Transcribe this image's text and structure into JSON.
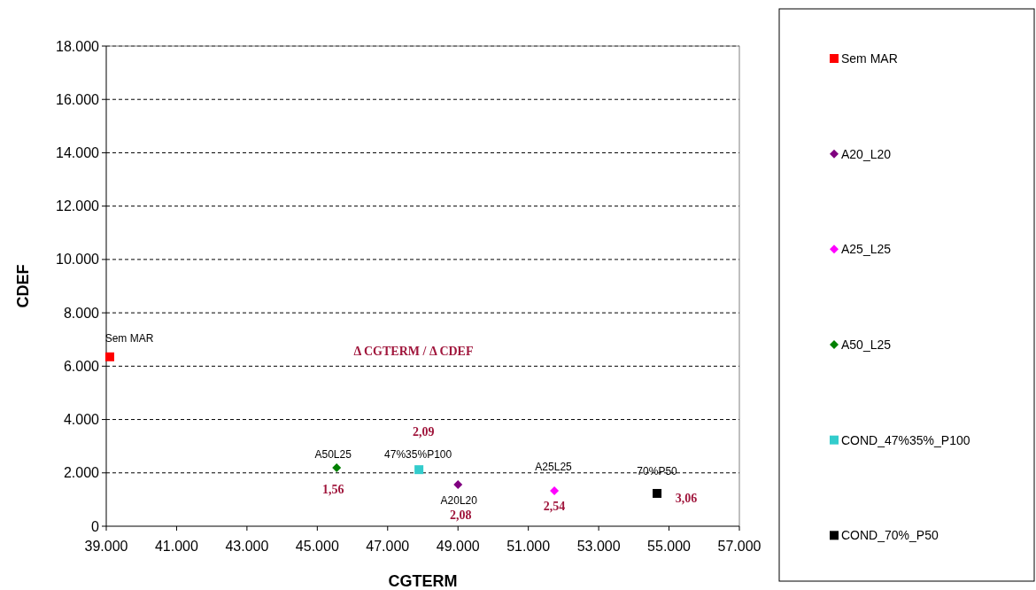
{
  "chart_data": {
    "type": "scatter",
    "xlabel": "CGTERM",
    "ylabel": "CDEF",
    "series": [
      {
        "name": "Sem MAR",
        "color": "#ff0000",
        "marker": "square",
        "x": [
          39100
        ],
        "values": [
          6350
        ]
      },
      {
        "name": "A20_L20",
        "color": "#800080",
        "marker": "diamond",
        "x": [
          49000
        ],
        "values": [
          1560
        ]
      },
      {
        "name": "A25_L25",
        "color": "#ff00ff",
        "marker": "diamond",
        "x": [
          51740
        ],
        "values": [
          1330
        ]
      },
      {
        "name": "A50_L25",
        "color": "#008000",
        "marker": "diamond",
        "x": [
          45550
        ],
        "values": [
          2190
        ]
      },
      {
        "name": "COND_47%35%_P100",
        "color": "#33cccc",
        "marker": "square",
        "x": [
          47890
        ],
        "values": [
          2120
        ]
      },
      {
        "name": "COND_70%_P50",
        "color": "#000000",
        "marker": "square",
        "x": [
          54660
        ],
        "values": [
          1230
        ]
      }
    ],
    "xlim": [
      39000,
      57000
    ],
    "xticks": [
      {
        "value": 39000,
        "label": "39.000"
      },
      {
        "value": 41000,
        "label": "41.000"
      },
      {
        "value": 43000,
        "label": "43.000"
      },
      {
        "value": 45000,
        "label": "45.000"
      },
      {
        "value": 47000,
        "label": "47.000"
      },
      {
        "value": 49000,
        "label": "49.000"
      },
      {
        "value": 51000,
        "label": "51.000"
      },
      {
        "value": 53000,
        "label": "53.000"
      },
      {
        "value": 55000,
        "label": "55.000"
      },
      {
        "value": 57000,
        "label": "57.000"
      }
    ],
    "ylim": [
      0,
      18000
    ],
    "yticks": [
      0,
      {
        "value": 2000,
        "label": "2.000"
      },
      {
        "value": 4000,
        "label": "4.000"
      },
      {
        "value": 6000,
        "label": "6.000"
      },
      {
        "value": 8000,
        "label": "8.000"
      },
      {
        "value": 10000,
        "label": "10.000"
      },
      {
        "value": 12000,
        "label": "12.000"
      },
      {
        "value": 14000,
        "label": "14.000"
      },
      {
        "value": 16000,
        "label": "16.000"
      },
      {
        "value": 18000,
        "label": "18.000"
      }
    ],
    "grid": "y",
    "legend": "right",
    "annotations": [
      {
        "text": "Sem MAR",
        "x": 39100,
        "y": 6350
      },
      {
        "text": "A50L25",
        "x": 45550,
        "y": 2190
      },
      {
        "text": "47%35%P100",
        "x": 47890,
        "y": 2120
      },
      {
        "text": "A20L20",
        "x": 49000,
        "y": 1560
      },
      {
        "text": "A25L25",
        "x": 51740,
        "y": 1330
      },
      {
        "text": "70%P50",
        "x": 54660,
        "y": 1230
      },
      "Δ CGTERM / Δ CDEF",
      {
        "text": "2,09",
        "x": 47890,
        "y": 2120
      },
      {
        "text": "1,56",
        "x": 45550,
        "y": 2190
      },
      {
        "text": "2,08",
        "x": 49000,
        "y": 1560
      },
      {
        "text": "2,54",
        "x": 51740,
        "y": 1330
      },
      {
        "text": "3,06",
        "x": 54660,
        "y": 1230
      }
    ]
  }
}
